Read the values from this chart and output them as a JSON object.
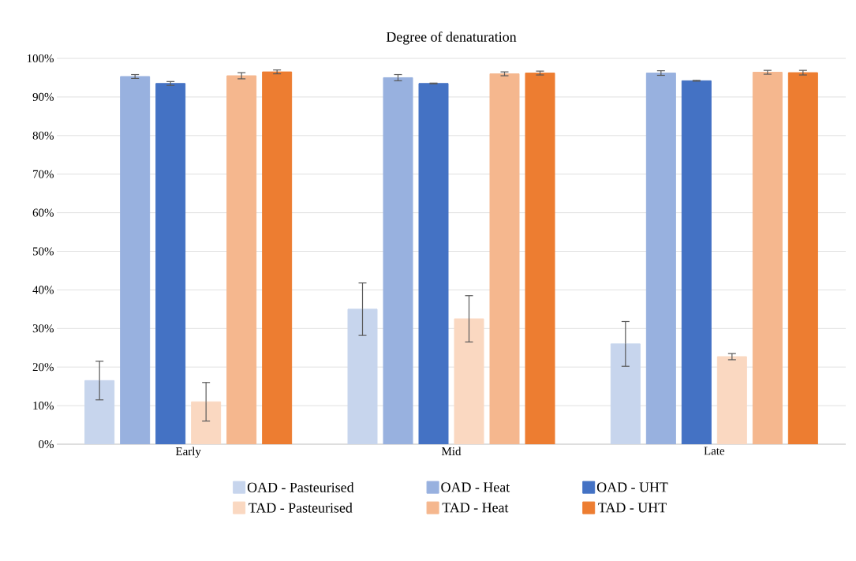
{
  "chart_data": {
    "type": "bar",
    "title": "Degree of denaturation",
    "categories": [
      "Early",
      "Mid",
      "Late"
    ],
    "series": [
      {
        "name": "OAD - Pasteurised",
        "color": "#c7d5ed",
        "values": [
          16.5,
          35,
          26
        ],
        "errors": [
          5,
          6.8,
          5.8
        ]
      },
      {
        "name": "OAD - Heat",
        "color": "#98b1df",
        "values": [
          95.3,
          95,
          96.2
        ],
        "errors": [
          0.5,
          0.8,
          0.6
        ]
      },
      {
        "name": "OAD - UHT",
        "color": "#4472c4",
        "values": [
          93.5,
          93.5,
          94.2
        ],
        "errors": [
          0.5,
          0.1,
          0.1
        ]
      },
      {
        "name": "TAD - Pasteurised",
        "color": "#fad8c1",
        "values": [
          11,
          32.5,
          22.7
        ],
        "errors": [
          5,
          6,
          0.8
        ]
      },
      {
        "name": "TAD - Heat",
        "color": "#f5b78e",
        "values": [
          95.5,
          96,
          96.4
        ],
        "errors": [
          0.8,
          0.5,
          0.5
        ]
      },
      {
        "name": "TAD - UHT",
        "color": "#ed7d31",
        "values": [
          96.5,
          96.2,
          96.3
        ],
        "errors": [
          0.5,
          0.5,
          0.6
        ]
      }
    ],
    "ylim": [
      0,
      100
    ],
    "yticks": [
      {
        "value": 0,
        "label": "0%"
      },
      {
        "value": 10,
        "label": "10%"
      },
      {
        "value": 20,
        "label": "20%"
      },
      {
        "value": 30,
        "label": "30%"
      },
      {
        "value": 40,
        "label": "40%"
      },
      {
        "value": 50,
        "label": "50%"
      },
      {
        "value": 60,
        "label": "60%"
      },
      {
        "value": 70,
        "label": "70%"
      },
      {
        "value": 80,
        "label": "80%"
      },
      {
        "value": 90,
        "label": "90%"
      },
      {
        "value": 100,
        "label": "100%"
      }
    ],
    "grid": "y",
    "legend": "bottom"
  }
}
